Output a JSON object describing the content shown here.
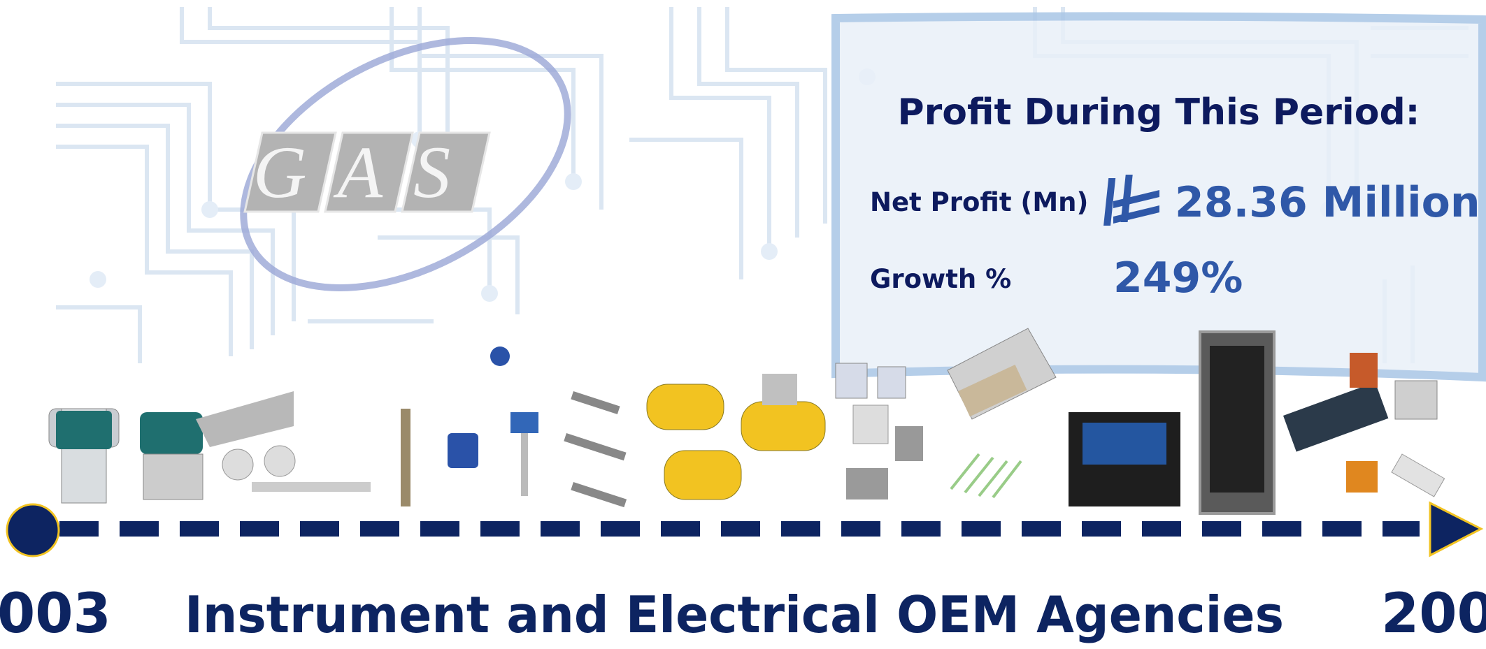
{
  "logo": {
    "text": "GAS"
  },
  "profit_panel": {
    "title": "Profit During This Period:",
    "rows": [
      {
        "label": "Net Profit (Mn)",
        "value": "28.36 Million"
      },
      {
        "label": "Growth %",
        "value": "249%"
      }
    ]
  },
  "timeline": {
    "start_label": "003",
    "caption": "Instrument and Electrical OEM Agencies",
    "end_label": "200"
  }
}
